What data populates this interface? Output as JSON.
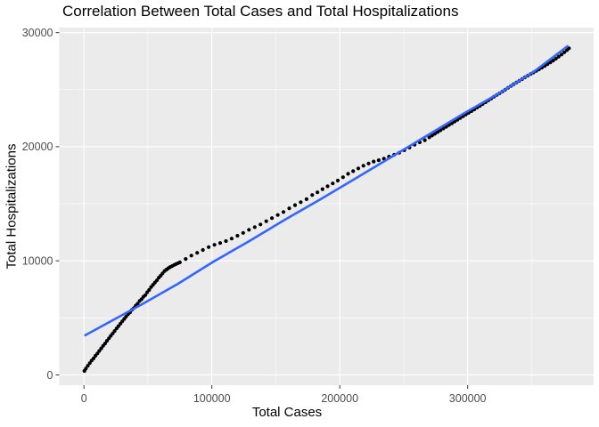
{
  "chart_data": {
    "type": "scatter",
    "title": "Correlation Between Total Cases and Total Hospitalizations",
    "xlabel": "Total Cases",
    "ylabel": "Total Hospitalizations",
    "xlim": [
      -19300,
      398500
    ],
    "ylim": [
      -900,
      30440
    ],
    "grid": "on",
    "legend": "none",
    "panel_bg": "#EBEBEB",
    "grid_color": "#FFFFFF",
    "tick_color": "#333333",
    "tick_label_color": "#4D4D4D",
    "x_ticks": {
      "values": [
        0,
        100000,
        200000,
        300000
      ],
      "labels": [
        "0",
        "100000",
        "200000",
        "300000"
      ]
    },
    "y_ticks": {
      "values": [
        0,
        10000,
        20000,
        30000
      ],
      "labels": [
        "0",
        "10000",
        "20000",
        "30000"
      ]
    },
    "x_minor": [
      50000,
      150000,
      250000,
      350000
    ],
    "y_minor": [
      5000,
      15000,
      25000
    ],
    "series": [
      {
        "name": "observations",
        "type": "scatter",
        "color": "#000000",
        "marker_radius": 2.1,
        "points": [
          [
            350,
            350
          ],
          [
            1500,
            550
          ],
          [
            3000,
            800
          ],
          [
            4500,
            1030
          ],
          [
            6000,
            1260
          ],
          [
            7500,
            1450
          ],
          [
            9000,
            1680
          ],
          [
            10500,
            1880
          ],
          [
            12000,
            2100
          ],
          [
            13500,
            2330
          ],
          [
            15000,
            2550
          ],
          [
            16500,
            2760
          ],
          [
            18000,
            2990
          ],
          [
            19500,
            3210
          ],
          [
            21000,
            3430
          ],
          [
            22500,
            3640
          ],
          [
            24000,
            3850
          ],
          [
            25500,
            4070
          ],
          [
            27000,
            4280
          ],
          [
            28500,
            4490
          ],
          [
            30000,
            4700
          ],
          [
            31500,
            4910
          ],
          [
            33000,
            5120
          ],
          [
            34500,
            5330
          ],
          [
            36000,
            5480
          ],
          [
            37500,
            5700
          ],
          [
            39000,
            5860
          ],
          [
            40500,
            6070
          ],
          [
            42000,
            6250
          ],
          [
            43500,
            6480
          ],
          [
            45000,
            6630
          ],
          [
            46500,
            6850
          ],
          [
            48000,
            7000
          ],
          [
            49500,
            7250
          ],
          [
            51000,
            7450
          ],
          [
            52500,
            7700
          ],
          [
            54000,
            7900
          ],
          [
            55500,
            8100
          ],
          [
            57000,
            8280
          ],
          [
            58500,
            8520
          ],
          [
            60000,
            8700
          ],
          [
            61500,
            8900
          ],
          [
            63000,
            9100
          ],
          [
            64500,
            9230
          ],
          [
            66000,
            9350
          ],
          [
            67500,
            9460
          ],
          [
            69000,
            9550
          ],
          [
            70500,
            9640
          ],
          [
            72000,
            9720
          ],
          [
            73500,
            9800
          ],
          [
            75000,
            9870
          ],
          [
            79500,
            10160
          ],
          [
            84000,
            10460
          ],
          [
            88500,
            10700
          ],
          [
            93000,
            10950
          ],
          [
            97500,
            11200
          ],
          [
            102000,
            11400
          ],
          [
            106500,
            11560
          ],
          [
            111000,
            11730
          ],
          [
            115500,
            11950
          ],
          [
            120000,
            12200
          ],
          [
            124500,
            12450
          ],
          [
            129000,
            12720
          ],
          [
            133500,
            12950
          ],
          [
            138000,
            13190
          ],
          [
            142500,
            13470
          ],
          [
            147000,
            13740
          ],
          [
            151500,
            14010
          ],
          [
            156000,
            14280
          ],
          [
            160500,
            14600
          ],
          [
            165000,
            14880
          ],
          [
            169500,
            15140
          ],
          [
            174000,
            15400
          ],
          [
            178500,
            15770
          ],
          [
            182500,
            16000
          ],
          [
            186500,
            16280
          ],
          [
            190500,
            16530
          ],
          [
            194500,
            16780
          ],
          [
            198500,
            17030
          ],
          [
            202500,
            17330
          ],
          [
            206500,
            17620
          ],
          [
            210500,
            17860
          ],
          [
            214500,
            18100
          ],
          [
            218500,
            18330
          ],
          [
            222500,
            18530
          ],
          [
            226500,
            18700
          ],
          [
            230500,
            18820
          ],
          [
            234500,
            18950
          ],
          [
            238500,
            19130
          ],
          [
            242500,
            19290
          ],
          [
            246500,
            19470
          ],
          [
            250500,
            19690
          ],
          [
            254500,
            19920
          ],
          [
            258500,
            20180
          ],
          [
            262500,
            20380
          ],
          [
            266500,
            20570
          ],
          [
            270000,
            20820
          ],
          [
            272200,
            20980
          ],
          [
            274400,
            21130
          ],
          [
            276600,
            21290
          ],
          [
            278800,
            21440
          ],
          [
            281000,
            21600
          ],
          [
            283200,
            21750
          ],
          [
            285400,
            21900
          ],
          [
            287600,
            22050
          ],
          [
            289800,
            22200
          ],
          [
            292000,
            22360
          ],
          [
            294200,
            22510
          ],
          [
            296400,
            22670
          ],
          [
            298600,
            22820
          ],
          [
            300800,
            22970
          ],
          [
            303000,
            23120
          ],
          [
            305200,
            23270
          ],
          [
            307400,
            23430
          ],
          [
            309600,
            23580
          ],
          [
            311800,
            23740
          ],
          [
            314000,
            23900
          ],
          [
            316200,
            24060
          ],
          [
            318400,
            24220
          ],
          [
            320600,
            24380
          ],
          [
            322800,
            24540
          ],
          [
            325000,
            24690
          ],
          [
            327200,
            24840
          ],
          [
            329400,
            25000
          ],
          [
            331600,
            25160
          ],
          [
            333800,
            25320
          ],
          [
            336000,
            25480
          ],
          [
            338200,
            25630
          ],
          [
            340400,
            25780
          ],
          [
            342600,
            25930
          ],
          [
            344800,
            26080
          ],
          [
            347000,
            26230
          ],
          [
            349200,
            26370
          ],
          [
            351400,
            26500
          ],
          [
            353600,
            26640
          ],
          [
            355800,
            26780
          ],
          [
            358000,
            26930
          ],
          [
            360200,
            27080
          ],
          [
            362400,
            27230
          ],
          [
            364600,
            27390
          ],
          [
            366800,
            27550
          ],
          [
            369000,
            27720
          ],
          [
            371200,
            27900
          ],
          [
            373400,
            28080
          ],
          [
            375600,
            28270
          ],
          [
            377600,
            28460
          ],
          [
            379200,
            28620
          ]
        ]
      },
      {
        "name": "smooth-line",
        "type": "line",
        "color": "#3366FF",
        "line_width": 2.6,
        "points": [
          [
            1000,
            3470
          ],
          [
            21300,
            4720
          ],
          [
            45600,
            6200
          ],
          [
            73500,
            7990
          ],
          [
            101400,
            9940
          ],
          [
            129300,
            11730
          ],
          [
            157100,
            13600
          ],
          [
            185000,
            15390
          ],
          [
            212900,
            17260
          ],
          [
            240800,
            19130
          ],
          [
            268600,
            21000
          ],
          [
            296500,
            22880
          ],
          [
            324400,
            24670
          ],
          [
            352300,
            26620
          ],
          [
            378000,
            28800
          ]
        ]
      }
    ]
  }
}
